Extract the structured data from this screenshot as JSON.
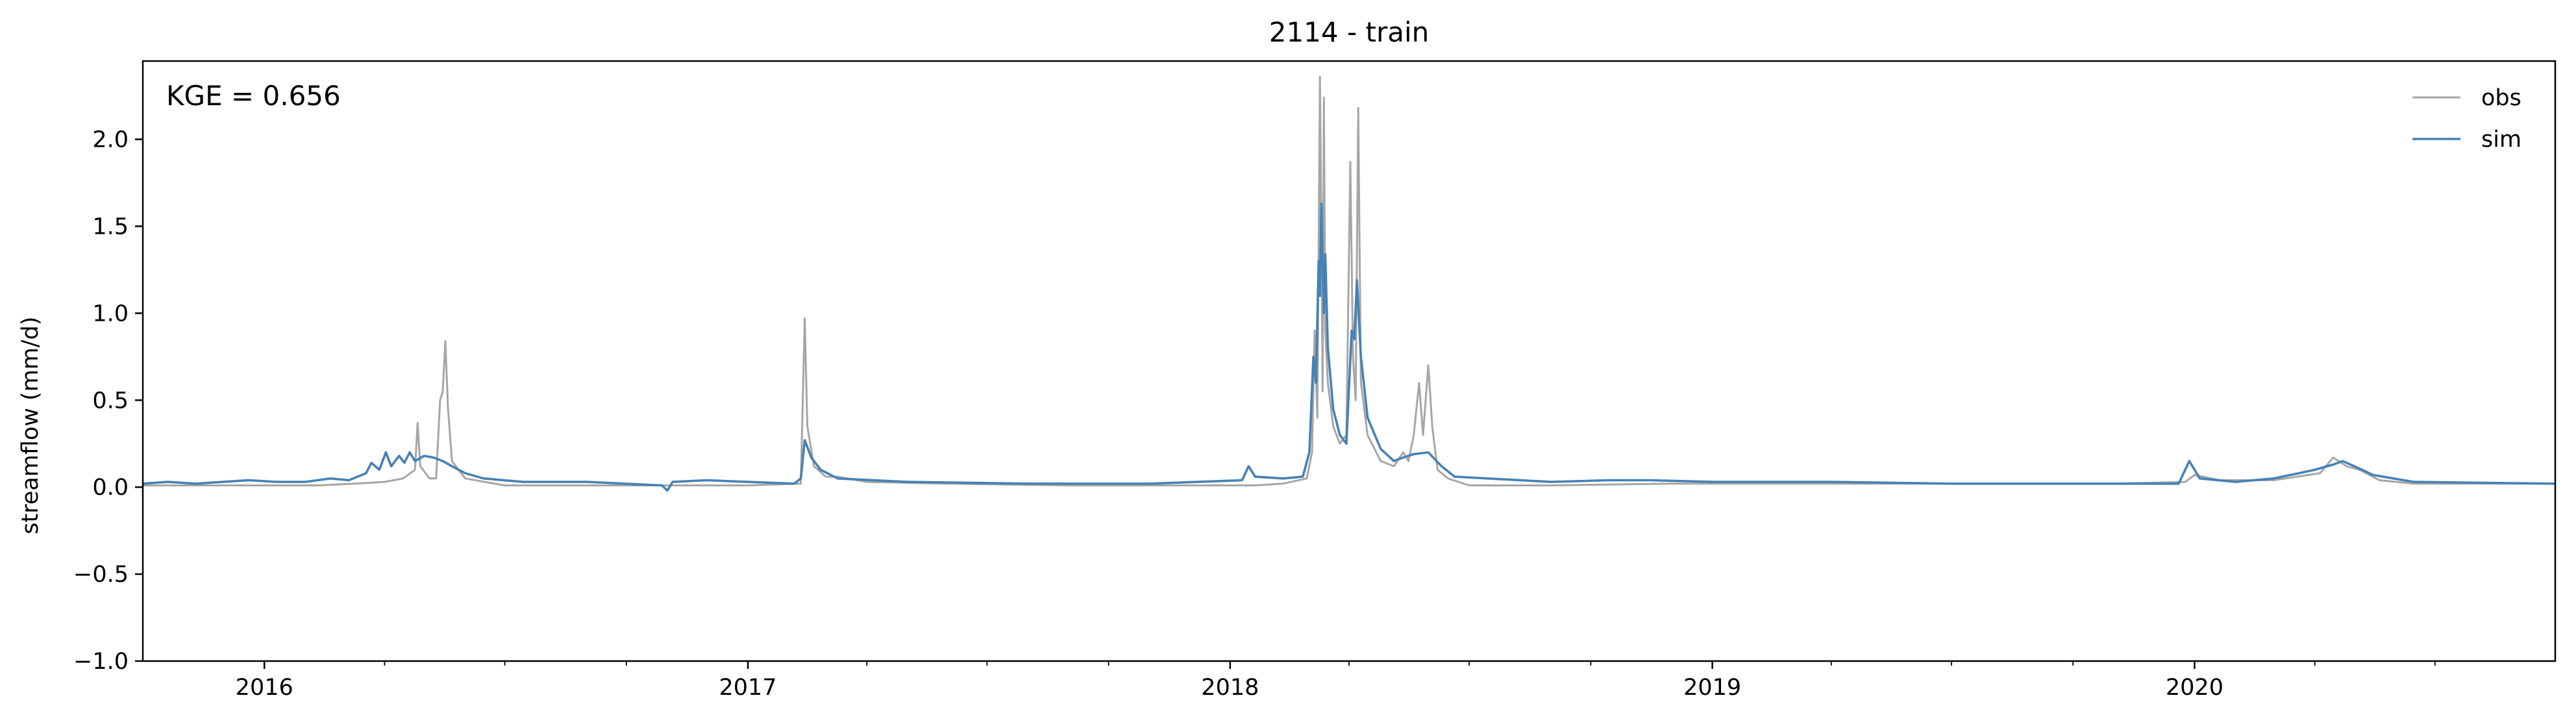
{
  "chart_data": {
    "type": "line",
    "title": "2114 - train",
    "xlabel": "",
    "ylabel": "streamflow (mm/d)",
    "annotation": "KGE = 0.656",
    "x_axis": "date",
    "xlim": [
      "2015-10-01",
      "2020-09-30"
    ],
    "ylim": [
      -1.0,
      2.45
    ],
    "yticks": [
      -1.0,
      -0.5,
      0.0,
      0.5,
      1.0,
      1.5,
      2.0
    ],
    "ytick_labels": [
      "−1.0",
      "−0.5",
      "0.0",
      "0.5",
      "1.0",
      "1.5",
      "2.0"
    ],
    "xticks": [
      "2016-01-01",
      "2017-01-01",
      "2018-01-01",
      "2019-01-01",
      "2020-01-01"
    ],
    "xtick_labels": [
      "2016",
      "2017",
      "2018",
      "2019",
      "2020"
    ],
    "grid": false,
    "legend_position": "top-right",
    "series": [
      {
        "name": "obs",
        "color": "#a6a6a6",
        "points": [
          [
            "2015-10-01",
            0.01
          ],
          [
            "2015-11-15",
            0.01
          ],
          [
            "2016-01-01",
            0.01
          ],
          [
            "2016-02-10",
            0.01
          ],
          [
            "2016-03-10",
            0.02
          ],
          [
            "2016-04-01",
            0.03
          ],
          [
            "2016-04-15",
            0.05
          ],
          [
            "2016-04-24",
            0.1
          ],
          [
            "2016-04-26",
            0.37
          ],
          [
            "2016-04-28",
            0.12
          ],
          [
            "2016-05-05",
            0.05
          ],
          [
            "2016-05-10",
            0.05
          ],
          [
            "2016-05-13",
            0.5
          ],
          [
            "2016-05-15",
            0.55
          ],
          [
            "2016-05-17",
            0.84
          ],
          [
            "2016-05-19",
            0.45
          ],
          [
            "2016-05-22",
            0.15
          ],
          [
            "2016-06-01",
            0.05
          ],
          [
            "2016-07-01",
            0.01
          ],
          [
            "2016-10-01",
            0.01
          ],
          [
            "2017-01-01",
            0.01
          ],
          [
            "2017-02-10",
            0.02
          ],
          [
            "2017-02-13",
            0.97
          ],
          [
            "2017-02-15",
            0.35
          ],
          [
            "2017-02-20",
            0.12
          ],
          [
            "2017-03-01",
            0.06
          ],
          [
            "2017-03-10",
            0.06
          ],
          [
            "2017-04-01",
            0.03
          ],
          [
            "2017-06-01",
            0.02
          ],
          [
            "2017-09-01",
            0.01
          ],
          [
            "2017-12-01",
            0.01
          ],
          [
            "2018-01-20",
            0.01
          ],
          [
            "2018-02-10",
            0.02
          ],
          [
            "2018-02-28",
            0.05
          ],
          [
            "2018-03-04",
            0.2
          ],
          [
            "2018-03-06",
            0.9
          ],
          [
            "2018-03-08",
            0.4
          ],
          [
            "2018-03-10",
            2.36
          ],
          [
            "2018-03-11",
            1.5
          ],
          [
            "2018-03-12",
            0.55
          ],
          [
            "2018-03-13",
            2.24
          ],
          [
            "2018-03-14",
            0.9
          ],
          [
            "2018-03-16",
            0.6
          ],
          [
            "2018-03-20",
            0.35
          ],
          [
            "2018-03-25",
            0.25
          ],
          [
            "2018-03-30",
            0.3
          ],
          [
            "2018-04-02",
            1.87
          ],
          [
            "2018-04-04",
            0.75
          ],
          [
            "2018-04-06",
            0.5
          ],
          [
            "2018-04-08",
            2.18
          ],
          [
            "2018-04-10",
            0.6
          ],
          [
            "2018-04-15",
            0.3
          ],
          [
            "2018-04-25",
            0.15
          ],
          [
            "2018-05-05",
            0.12
          ],
          [
            "2018-05-12",
            0.2
          ],
          [
            "2018-05-16",
            0.15
          ],
          [
            "2018-05-20",
            0.3
          ],
          [
            "2018-05-24",
            0.6
          ],
          [
            "2018-05-27",
            0.3
          ],
          [
            "2018-05-31",
            0.7
          ],
          [
            "2018-06-03",
            0.35
          ],
          [
            "2018-06-07",
            0.1
          ],
          [
            "2018-06-15",
            0.05
          ],
          [
            "2018-07-01",
            0.01
          ],
          [
            "2018-09-01",
            0.01
          ],
          [
            "2018-12-01",
            0.02
          ],
          [
            "2019-06-01",
            0.02
          ],
          [
            "2019-11-01",
            0.02
          ],
          [
            "2019-12-25",
            0.03
          ],
          [
            "2020-01-01",
            0.07
          ],
          [
            "2020-01-20",
            0.04
          ],
          [
            "2020-03-01",
            0.04
          ],
          [
            "2020-04-05",
            0.08
          ],
          [
            "2020-04-15",
            0.17
          ],
          [
            "2020-04-25",
            0.12
          ],
          [
            "2020-05-05",
            0.1
          ],
          [
            "2020-05-20",
            0.04
          ],
          [
            "2020-06-15",
            0.02
          ],
          [
            "2020-09-30",
            0.02
          ]
        ]
      },
      {
        "name": "sim",
        "color": "#4682b4",
        "points": [
          [
            "2015-10-01",
            0.02
          ],
          [
            "2015-10-20",
            0.03
          ],
          [
            "2015-11-10",
            0.02
          ],
          [
            "2015-12-20",
            0.04
          ],
          [
            "2016-01-10",
            0.03
          ],
          [
            "2016-02-01",
            0.03
          ],
          [
            "2016-02-20",
            0.05
          ],
          [
            "2016-03-05",
            0.04
          ],
          [
            "2016-03-18",
            0.08
          ],
          [
            "2016-03-22",
            0.14
          ],
          [
            "2016-03-28",
            0.1
          ],
          [
            "2016-04-02",
            0.2
          ],
          [
            "2016-04-06",
            0.12
          ],
          [
            "2016-04-12",
            0.18
          ],
          [
            "2016-04-16",
            0.14
          ],
          [
            "2016-04-20",
            0.2
          ],
          [
            "2016-04-24",
            0.15
          ],
          [
            "2016-05-01",
            0.18
          ],
          [
            "2016-05-08",
            0.17
          ],
          [
            "2016-05-15",
            0.15
          ],
          [
            "2016-05-22",
            0.12
          ],
          [
            "2016-06-01",
            0.08
          ],
          [
            "2016-06-15",
            0.05
          ],
          [
            "2016-07-15",
            0.03
          ],
          [
            "2016-09-01",
            0.03
          ],
          [
            "2016-10-28",
            0.01
          ],
          [
            "2016-11-01",
            -0.02
          ],
          [
            "2016-11-05",
            0.03
          ],
          [
            "2016-12-01",
            0.04
          ],
          [
            "2017-01-01",
            0.03
          ],
          [
            "2017-02-05",
            0.02
          ],
          [
            "2017-02-10",
            0.05
          ],
          [
            "2017-02-13",
            0.27
          ],
          [
            "2017-02-18",
            0.17
          ],
          [
            "2017-02-25",
            0.1
          ],
          [
            "2017-03-10",
            0.05
          ],
          [
            "2017-05-01",
            0.03
          ],
          [
            "2017-08-01",
            0.02
          ],
          [
            "2017-11-01",
            0.02
          ],
          [
            "2018-01-10",
            0.04
          ],
          [
            "2018-01-15",
            0.12
          ],
          [
            "2018-01-20",
            0.06
          ],
          [
            "2018-02-10",
            0.05
          ],
          [
            "2018-02-25",
            0.06
          ],
          [
            "2018-03-02",
            0.2
          ],
          [
            "2018-03-05",
            0.75
          ],
          [
            "2018-03-07",
            0.6
          ],
          [
            "2018-03-09",
            1.3
          ],
          [
            "2018-03-10",
            1.1
          ],
          [
            "2018-03-11",
            1.63
          ],
          [
            "2018-03-13",
            1.0
          ],
          [
            "2018-03-14",
            1.34
          ],
          [
            "2018-03-16",
            0.8
          ],
          [
            "2018-03-20",
            0.45
          ],
          [
            "2018-03-25",
            0.3
          ],
          [
            "2018-03-30",
            0.25
          ],
          [
            "2018-04-03",
            0.9
          ],
          [
            "2018-04-05",
            0.85
          ],
          [
            "2018-04-07",
            1.19
          ],
          [
            "2018-04-10",
            0.75
          ],
          [
            "2018-04-15",
            0.4
          ],
          [
            "2018-04-25",
            0.22
          ],
          [
            "2018-05-05",
            0.15
          ],
          [
            "2018-05-12",
            0.17
          ],
          [
            "2018-05-20",
            0.19
          ],
          [
            "2018-05-31",
            0.2
          ],
          [
            "2018-06-10",
            0.12
          ],
          [
            "2018-06-20",
            0.06
          ],
          [
            "2018-07-15",
            0.05
          ],
          [
            "2018-09-01",
            0.03
          ],
          [
            "2018-10-15",
            0.04
          ],
          [
            "2018-11-15",
            0.04
          ],
          [
            "2019-01-01",
            0.03
          ],
          [
            "2019-04-01",
            0.03
          ],
          [
            "2019-07-01",
            0.02
          ],
          [
            "2019-10-01",
            0.02
          ],
          [
            "2019-12-20",
            0.02
          ],
          [
            "2019-12-28",
            0.15
          ],
          [
            "2020-01-05",
            0.05
          ],
          [
            "2020-02-01",
            0.03
          ],
          [
            "2020-03-01",
            0.05
          ],
          [
            "2020-03-20",
            0.08
          ],
          [
            "2020-04-01",
            0.1
          ],
          [
            "2020-04-15",
            0.13
          ],
          [
            "2020-04-22",
            0.15
          ],
          [
            "2020-05-01",
            0.12
          ],
          [
            "2020-05-15",
            0.07
          ],
          [
            "2020-06-15",
            0.03
          ],
          [
            "2020-09-30",
            0.02
          ]
        ]
      }
    ]
  }
}
